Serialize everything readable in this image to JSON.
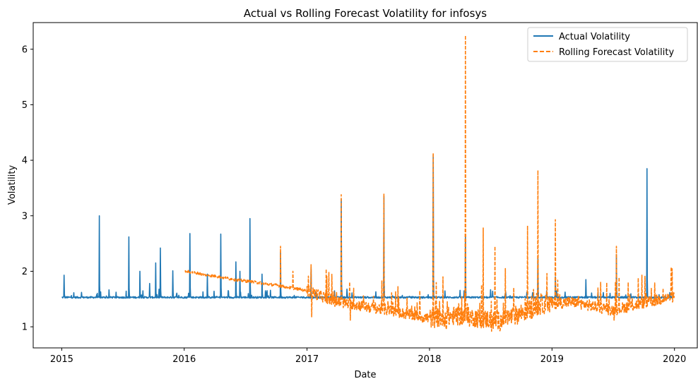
{
  "chart_data": {
    "type": "line",
    "title": "Actual vs Rolling Forecast Volatility for infosys",
    "xlabel": "Date",
    "ylabel": "Volatility",
    "xlim": [
      "2014-10-08",
      "2020-03-09"
    ],
    "ylim": [
      0.62,
      6.48
    ],
    "x_ticks": [
      "2015",
      "2016",
      "2017",
      "2018",
      "2019",
      "2020"
    ],
    "y_ticks": [
      1,
      2,
      3,
      4,
      5,
      6
    ],
    "grid": false,
    "legend_position": "top-right",
    "series": [
      {
        "name": "Actual Volatility",
        "color": "#1f77b4",
        "style": "solid",
        "baseline": 1.53,
        "start": "2015-01-01",
        "end": "2019-12-31",
        "spikes": [
          [
            "2015-01-08",
            1.93
          ],
          [
            "2015-03-01",
            1.62
          ],
          [
            "2015-04-23",
            3.0
          ],
          [
            "2015-07-20",
            2.62
          ],
          [
            "2015-08-22",
            2.0
          ],
          [
            "2015-09-20",
            1.78
          ],
          [
            "2015-10-08",
            2.15
          ],
          [
            "2015-10-22",
            2.42
          ],
          [
            "2015-11-28",
            2.01
          ],
          [
            "2016-01-18",
            2.68
          ],
          [
            "2016-03-10",
            1.95
          ],
          [
            "2016-04-19",
            2.67
          ],
          [
            "2016-06-03",
            2.17
          ],
          [
            "2016-06-15",
            2.0
          ],
          [
            "2016-07-15",
            2.95
          ],
          [
            "2016-08-20",
            1.95
          ],
          [
            "2016-10-14",
            2.35
          ],
          [
            "2017-01-13",
            2.07
          ],
          [
            "2017-04-13",
            3.3
          ],
          [
            "2017-08-18",
            3.35
          ],
          [
            "2018-01-12",
            4.1
          ],
          [
            "2018-04-18",
            2.65
          ],
          [
            "2018-11-20",
            2.25
          ],
          [
            "2019-01-11",
            1.9
          ],
          [
            "2019-04-12",
            1.85
          ],
          [
            "2019-07-12",
            2.3
          ],
          [
            "2019-10-11",
            3.85
          ]
        ]
      },
      {
        "name": "Rolling Forecast Volatility",
        "color": "#ff7f0e",
        "style": "dashed",
        "start": "2016-01-04",
        "end": "2019-12-31",
        "trend": [
          [
            "2016-01-04",
            2.0
          ],
          [
            "2016-06-01",
            1.85
          ],
          [
            "2016-10-01",
            1.75
          ],
          [
            "2017-01-01",
            1.65
          ],
          [
            "2017-04-01",
            1.45
          ],
          [
            "2017-09-01",
            1.3
          ],
          [
            "2018-01-01",
            1.15
          ],
          [
            "2018-04-01",
            1.2
          ],
          [
            "2018-08-01",
            1.1
          ],
          [
            "2018-12-01",
            1.4
          ],
          [
            "2019-03-01",
            1.45
          ],
          [
            "2019-07-01",
            1.3
          ],
          [
            "2019-12-31",
            1.55
          ]
        ],
        "spikes": [
          [
            "2016-10-14",
            2.45
          ],
          [
            "2016-11-20",
            2.0
          ],
          [
            "2017-01-13",
            2.12
          ],
          [
            "2017-04-13",
            3.38
          ],
          [
            "2017-08-18",
            3.4
          ],
          [
            "2018-01-12",
            4.13
          ],
          [
            "2018-02-10",
            1.9
          ],
          [
            "2018-04-18",
            6.25
          ],
          [
            "2018-06-10",
            2.78
          ],
          [
            "2018-07-15",
            2.45
          ],
          [
            "2018-08-15",
            2.05
          ],
          [
            "2018-10-20",
            2.82
          ],
          [
            "2018-11-20",
            3.82
          ],
          [
            "2019-01-11",
            2.93
          ],
          [
            "2019-07-12",
            2.45
          ],
          [
            "2019-09-15",
            1.88
          ]
        ],
        "dips": [
          [
            "2017-01-15",
            1.18
          ],
          [
            "2017-05-10",
            1.12
          ],
          [
            "2018-02-20",
            0.95
          ],
          [
            "2018-07-05",
            0.92
          ],
          [
            "2019-07-05",
            1.12
          ]
        ]
      }
    ]
  }
}
